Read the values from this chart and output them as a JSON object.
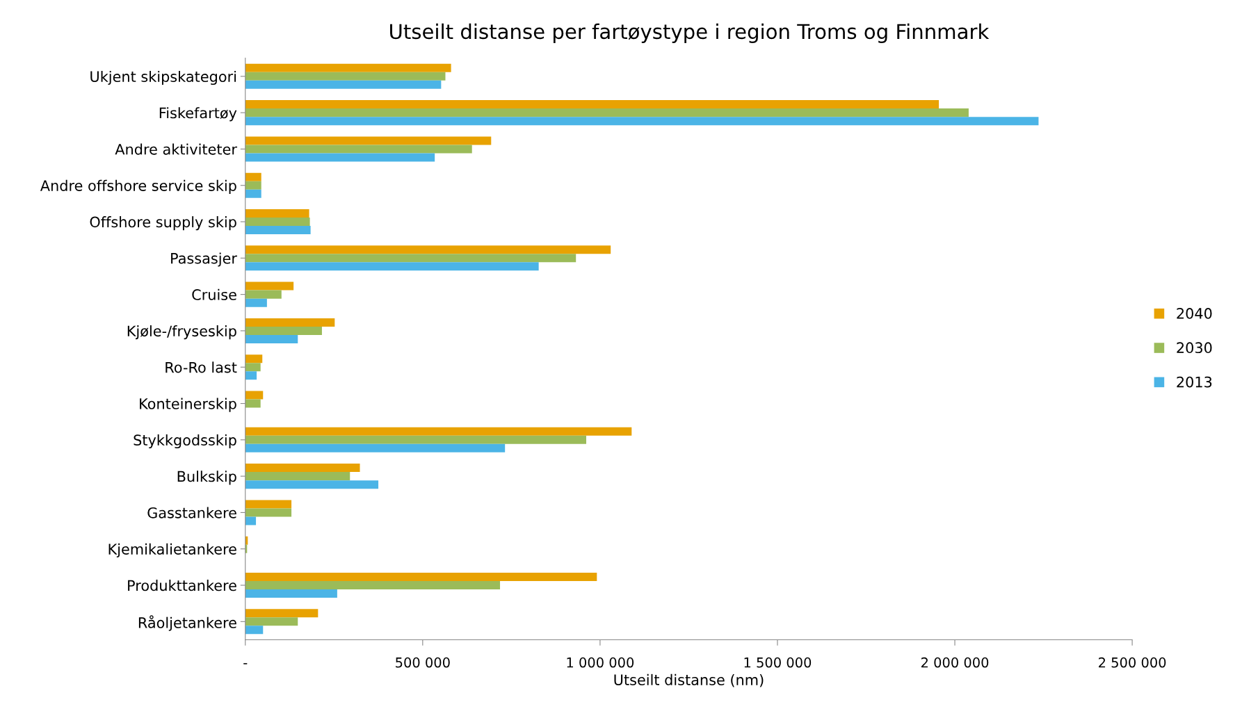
{
  "chart_data": {
    "type": "bar",
    "orientation": "horizontal",
    "title": "Utseilt distanse per fartøystype i region Troms og Finnmark",
    "xlabel": "Utseilt distanse (nm)",
    "categories": [
      "Ukjent skipskategori",
      "Fiskefartøy",
      "Andre aktiviteter",
      "Andre offshore service skip",
      "Offshore supply skip",
      "Passasjer",
      "Cruise",
      "Kjøle-/fryseskip",
      "Ro-Ro last",
      "Konteinerskip",
      "Stykkgodsskip",
      "Bulkskip",
      "Gasstankere",
      "Kjemikalietankere",
      "Produkttankere",
      "Råoljetankere"
    ],
    "series": [
      {
        "name": "2040",
        "color": "#e8a202",
        "values": [
          580000,
          1955000,
          693000,
          45000,
          180000,
          1030000,
          136000,
          252000,
          48000,
          50000,
          1089000,
          323000,
          130000,
          7000,
          991000,
          205000
        ]
      },
      {
        "name": "2030",
        "color": "#9bbb59",
        "values": [
          564000,
          2039000,
          639000,
          45000,
          182000,
          932000,
          102000,
          216000,
          43000,
          43000,
          961000,
          295000,
          130000,
          5000,
          718000,
          148000
        ]
      },
      {
        "name": "2013",
        "color": "#4bb4e6",
        "values": [
          552000,
          2236000,
          534000,
          45000,
          184000,
          827000,
          61000,
          148000,
          32000,
          0,
          732000,
          375000,
          30000,
          0,
          259000,
          50000
        ]
      }
    ],
    "xlim": [
      0,
      2500000
    ],
    "xticks": [
      {
        "value": 0,
        "label": "-"
      },
      {
        "value": 500000,
        "label": "500 000"
      },
      {
        "value": 1000000,
        "label": "1 000 000"
      },
      {
        "value": 1500000,
        "label": "1 500 000"
      },
      {
        "value": 2000000,
        "label": "2 000 000"
      },
      {
        "value": 2500000,
        "label": "2 500 000"
      }
    ],
    "grid": false,
    "legend": "right"
  }
}
